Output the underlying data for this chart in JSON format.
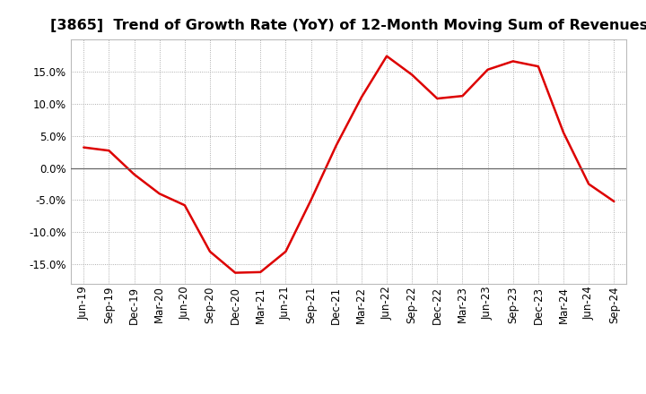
{
  "title": "[3865]  Trend of Growth Rate (YoY) of 12-Month Moving Sum of Revenues",
  "x_labels": [
    "Jun-19",
    "Sep-19",
    "Dec-19",
    "Mar-20",
    "Jun-20",
    "Sep-20",
    "Dec-20",
    "Mar-21",
    "Jun-21",
    "Sep-21",
    "Dec-21",
    "Mar-22",
    "Jun-22",
    "Sep-22",
    "Dec-22",
    "Mar-23",
    "Jun-23",
    "Sep-23",
    "Dec-23",
    "Mar-24",
    "Jun-24",
    "Sep-24"
  ],
  "y_values": [
    3.2,
    2.7,
    -1.0,
    -4.0,
    -5.8,
    -13.0,
    -16.3,
    -16.2,
    -13.0,
    -5.0,
    3.5,
    11.0,
    17.4,
    14.5,
    10.8,
    11.2,
    15.3,
    16.6,
    15.8,
    5.5,
    -2.5,
    -5.2
  ],
  "ylim": [
    -18,
    20
  ],
  "yticks": [
    -15.0,
    -10.0,
    -5.0,
    0.0,
    5.0,
    10.0,
    15.0
  ],
  "line_color": "#dd0000",
  "line_width": 1.8,
  "zero_line_color": "#666666",
  "background_color": "#ffffff",
  "grid_color": "#999999",
  "title_fontsize": 11.5,
  "tick_fontsize": 8.5
}
